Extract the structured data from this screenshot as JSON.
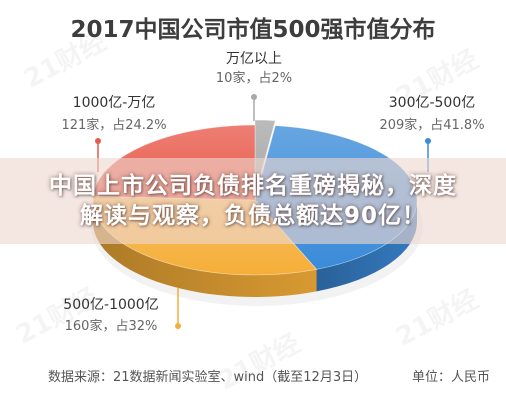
{
  "watermark": "21财经",
  "chart_data": {
    "type": "pie",
    "three_d": true,
    "title": "2017中国公司市值500强市值分布",
    "categories": [
      "万亿以上",
      "300亿-500亿",
      "500亿-1000亿",
      "1000亿-万亿"
    ],
    "values": [
      2,
      41.8,
      32,
      24.2
    ],
    "value_labels": [
      "10家，占2%",
      "209家，占41.8%",
      "160家，占32%",
      "121家，占24.2%"
    ],
    "colors": [
      "#a8a8a8",
      "#3b8bd9",
      "#f5ae38",
      "#e85b4c"
    ]
  },
  "headline": {
    "line1": "中国上市公司负债排名重磅揭秘，深度",
    "line2": "解读与观察，负债总额达90亿！"
  },
  "footer": {
    "source": "数据来源：21数据新闻实验室、wind（截至12月3日）",
    "unit": "单位：人民币"
  }
}
